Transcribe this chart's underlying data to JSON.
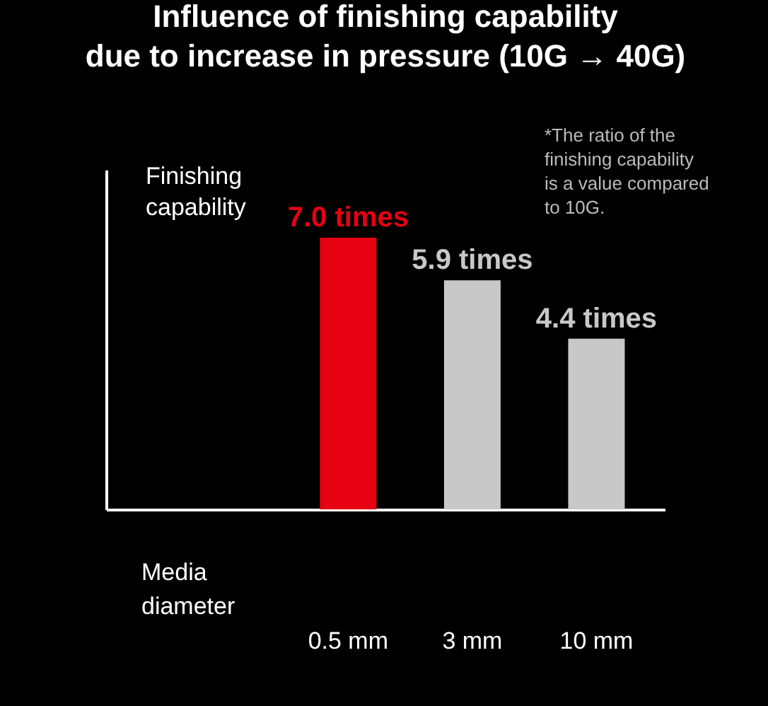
{
  "chart_data": {
    "type": "bar",
    "title": "Influence of finishing capability\ndue to increase in pressure (10G → 40G)",
    "ylabel": "Finishing capability",
    "xlabel": "Media diameter",
    "annotations": [
      "*The ratio of the finishing capability is a value compared to 10G."
    ],
    "categories": [
      "0.5 mm",
      "3 mm",
      "10 mm"
    ],
    "values": [
      7.0,
      5.9,
      4.4
    ],
    "colors": [
      "#e60012",
      "#c8c8c8",
      "#c8c8c8"
    ],
    "value_labels": [
      "7.0 times",
      "5.9 times",
      "4.4 times"
    ],
    "tick_labels": "x"
  }
}
